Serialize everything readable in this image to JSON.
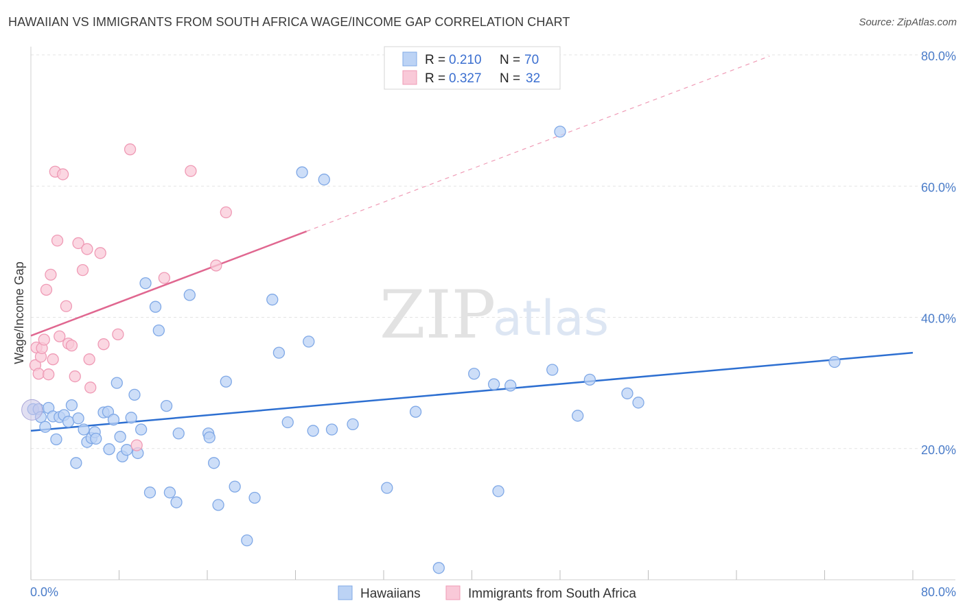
{
  "header": {
    "title": "HAWAIIAN VS IMMIGRANTS FROM SOUTH AFRICA WAGE/INCOME GAP CORRELATION CHART",
    "source": "Source: ZipAtlas.com"
  },
  "watermark": {
    "zip": "ZIP",
    "atlas": "atlas"
  },
  "legend": {
    "rows": [
      {
        "r_label": "R =",
        "r_value": "0.210",
        "n_label": "N =",
        "n_value": "70"
      },
      {
        "r_label": "R =",
        "r_value": "0.327",
        "n_label": "N =",
        "n_value": "32"
      }
    ]
  },
  "chart_data": {
    "type": "scatter",
    "ylabel": "Wage/Income Gap",
    "xlim": [
      0,
      80
    ],
    "ylim": [
      0,
      80
    ],
    "x_tick_labels": [
      "0.0%",
      "80.0%"
    ],
    "y_tick_values": [
      20,
      40,
      60,
      80
    ],
    "y_tick_labels": [
      "20.0%",
      "40.0%",
      "60.0%",
      "80.0%"
    ],
    "grid": true,
    "legend_position": "top-center",
    "series": [
      {
        "name": "Hawaiians",
        "color": "#7fa8e6",
        "fill": "#bcd3f5",
        "trend": {
          "x0": 0,
          "y0": 22.7,
          "x1": 80,
          "y1": 34.6,
          "color": "#2d6fd1"
        },
        "points": [
          [
            0.2,
            26.0
          ],
          [
            0.7,
            26.0
          ],
          [
            0.9,
            24.8
          ],
          [
            1.3,
            23.3
          ],
          [
            1.6,
            26.2
          ],
          [
            2.0,
            24.9
          ],
          [
            2.3,
            21.4
          ],
          [
            2.6,
            24.8
          ],
          [
            3.0,
            25.1
          ],
          [
            3.4,
            24.1
          ],
          [
            3.7,
            26.6
          ],
          [
            4.1,
            17.8
          ],
          [
            4.3,
            24.6
          ],
          [
            4.8,
            22.9
          ],
          [
            5.1,
            21.0
          ],
          [
            5.5,
            21.6
          ],
          [
            5.8,
            22.5
          ],
          [
            5.9,
            21.5
          ],
          [
            6.6,
            25.5
          ],
          [
            7.0,
            25.6
          ],
          [
            7.1,
            19.9
          ],
          [
            7.5,
            24.4
          ],
          [
            7.8,
            30.0
          ],
          [
            8.1,
            21.8
          ],
          [
            8.3,
            18.8
          ],
          [
            8.7,
            19.8
          ],
          [
            9.1,
            24.7
          ],
          [
            9.4,
            28.2
          ],
          [
            9.7,
            19.3
          ],
          [
            10.0,
            22.9
          ],
          [
            10.4,
            45.2
          ],
          [
            10.8,
            13.3
          ],
          [
            11.3,
            41.6
          ],
          [
            11.6,
            38.0
          ],
          [
            12.3,
            26.5
          ],
          [
            12.6,
            13.3
          ],
          [
            13.2,
            11.8
          ],
          [
            13.4,
            22.3
          ],
          [
            14.4,
            43.4
          ],
          [
            16.1,
            22.3
          ],
          [
            16.2,
            21.7
          ],
          [
            16.6,
            17.8
          ],
          [
            17.0,
            11.4
          ],
          [
            17.7,
            30.2
          ],
          [
            18.5,
            14.2
          ],
          [
            19.6,
            6.0
          ],
          [
            20.3,
            12.5
          ],
          [
            21.9,
            42.7
          ],
          [
            22.5,
            34.6
          ],
          [
            23.3,
            24.0
          ],
          [
            24.6,
            62.1
          ],
          [
            25.2,
            36.3
          ],
          [
            25.6,
            22.7
          ],
          [
            26.6,
            61.0
          ],
          [
            27.3,
            22.9
          ],
          [
            29.2,
            23.7
          ],
          [
            32.3,
            14.0
          ],
          [
            34.9,
            25.6
          ],
          [
            37.0,
            1.8
          ],
          [
            40.2,
            31.4
          ],
          [
            42.0,
            29.8
          ],
          [
            42.4,
            13.5
          ],
          [
            43.5,
            29.6
          ],
          [
            47.3,
            32.0
          ],
          [
            48.0,
            68.3
          ],
          [
            49.6,
            25.0
          ],
          [
            50.7,
            30.5
          ],
          [
            54.1,
            28.4
          ],
          [
            55.1,
            27.0
          ],
          [
            72.9,
            33.2
          ]
        ]
      },
      {
        "name": "Immigrants from South Africa",
        "color": "#ef9ab5",
        "fill": "#f9c9d8",
        "trend": {
          "x0": 0,
          "y0": 37.2,
          "x1": 25,
          "y1": 53.1,
          "color": "#e06790",
          "dash_to_x": 67
        },
        "points": [
          [
            0.4,
            32.7
          ],
          [
            0.5,
            35.4
          ],
          [
            0.7,
            31.4
          ],
          [
            0.9,
            34.0
          ],
          [
            1.0,
            35.3
          ],
          [
            1.2,
            36.6
          ],
          [
            1.4,
            44.2
          ],
          [
            1.6,
            31.3
          ],
          [
            1.8,
            46.5
          ],
          [
            2.0,
            33.6
          ],
          [
            2.2,
            62.2
          ],
          [
            2.4,
            51.7
          ],
          [
            2.6,
            37.1
          ],
          [
            2.9,
            61.8
          ],
          [
            3.2,
            41.7
          ],
          [
            3.4,
            36.0
          ],
          [
            3.7,
            35.7
          ],
          [
            4.0,
            31.0
          ],
          [
            4.3,
            51.3
          ],
          [
            4.7,
            47.2
          ],
          [
            5.1,
            50.4
          ],
          [
            5.3,
            33.6
          ],
          [
            5.4,
            29.3
          ],
          [
            6.3,
            49.8
          ],
          [
            6.6,
            35.9
          ],
          [
            7.9,
            37.4
          ],
          [
            9.0,
            65.6
          ],
          [
            9.6,
            20.5
          ],
          [
            12.1,
            46.0
          ],
          [
            14.5,
            62.3
          ],
          [
            16.8,
            47.9
          ],
          [
            17.7,
            56.0
          ]
        ]
      }
    ]
  }
}
